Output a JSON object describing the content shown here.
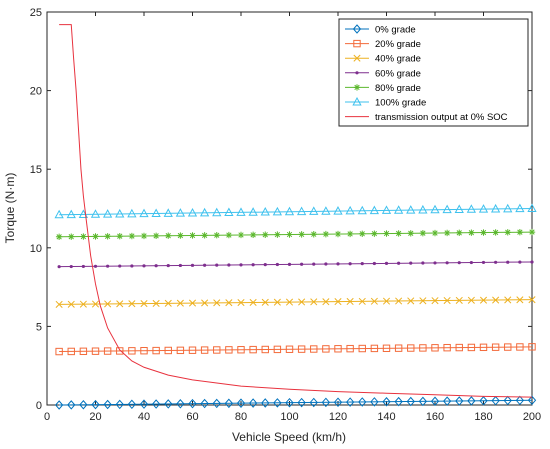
{
  "chart_data": {
    "type": "line",
    "xlabel": "Vehicle Speed (km/h)",
    "ylabel": "Torque (N·m)",
    "xlim": [
      0,
      200
    ],
    "ylim": [
      0,
      25
    ],
    "xticks": [
      0,
      20,
      40,
      60,
      80,
      100,
      120,
      140,
      160,
      180,
      200
    ],
    "yticks": [
      0,
      5,
      10,
      15,
      20,
      25
    ],
    "grid": false,
    "legend_position": "top-right",
    "series": [
      {
        "name": "0% grade",
        "color": "#0072BD",
        "marker": "diamond",
        "x": [
          5,
          200
        ],
        "y": [
          0.0,
          0.3
        ]
      },
      {
        "name": "20% grade",
        "color": "#F36A3A",
        "marker": "square",
        "x": [
          5,
          200
        ],
        "y": [
          3.4,
          3.7
        ]
      },
      {
        "name": "40% grade",
        "color": "#EDB120",
        "marker": "x",
        "x": [
          5,
          200
        ],
        "y": [
          6.4,
          6.7
        ]
      },
      {
        "name": "60% grade",
        "color": "#7E2F8E",
        "marker": "dot",
        "x": [
          5,
          200
        ],
        "y": [
          8.8,
          9.1
        ]
      },
      {
        "name": "80% grade",
        "color": "#5CB82E",
        "marker": "asterisk",
        "x": [
          5,
          200
        ],
        "y": [
          10.7,
          11.0
        ]
      },
      {
        "name": "100% grade",
        "color": "#3EC1EE",
        "marker": "triangle",
        "x": [
          5,
          200
        ],
        "y": [
          12.1,
          12.5
        ]
      },
      {
        "name": "transmission output at 0% SOC",
        "color": "#E8323E",
        "marker": "none",
        "x": [
          5,
          10,
          11,
          12,
          13,
          14,
          15,
          16,
          18,
          20,
          22,
          25,
          30,
          35,
          40,
          50,
          60,
          70,
          80,
          100,
          120,
          140,
          160,
          180,
          200
        ],
        "y": [
          24.2,
          24.2,
          22.0,
          20.0,
          17.5,
          15.0,
          13.3,
          12.0,
          9.5,
          7.7,
          6.3,
          4.9,
          3.5,
          2.8,
          2.4,
          1.9,
          1.6,
          1.4,
          1.2,
          1.0,
          0.85,
          0.75,
          0.65,
          0.55,
          0.5
        ]
      }
    ]
  }
}
